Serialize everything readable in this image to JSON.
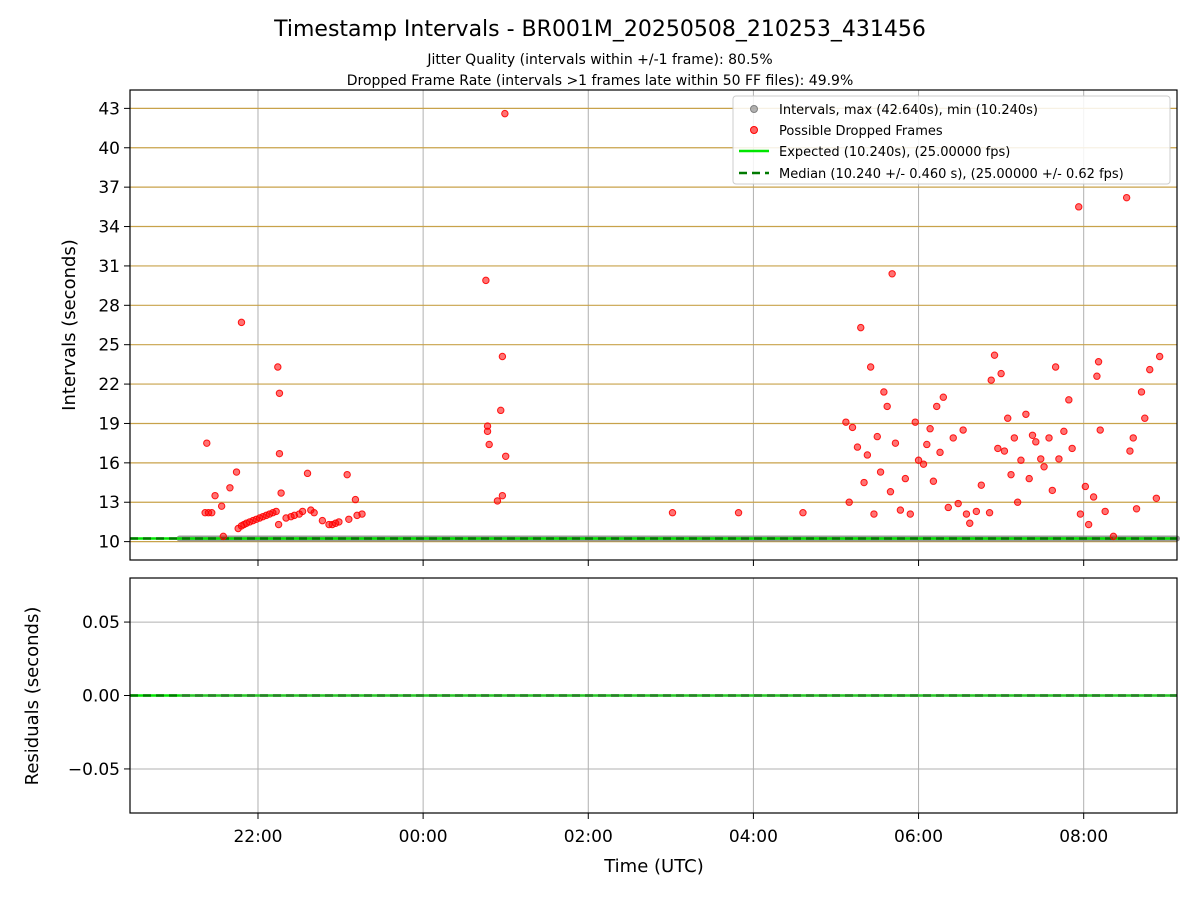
{
  "figure": {
    "title": "Timestamp Intervals - BR001M_20250508_210253_431456",
    "subtitle1": "Jitter Quality (intervals within +/-1 frame): 80.5%",
    "subtitle2": "Dropped Frame Rate (intervals >1 frames late within 50 FF files): 49.9%"
  },
  "chart_data": [
    {
      "type": "scatter",
      "panel": "top",
      "ylabel": "Intervals (seconds)",
      "xlabel": "",
      "x_unit": "hours since 00:00 UTC on 2025-05-09 (negative = 2025-05-08)",
      "xlim": [
        -3.55,
        9.13
      ],
      "ylim": [
        8.6,
        44.4
      ],
      "yticks": [
        10,
        13,
        16,
        19,
        22,
        25,
        28,
        31,
        34,
        37,
        40,
        43
      ],
      "xticks": [
        -2,
        0,
        2,
        4,
        6,
        8
      ],
      "xtick_labels": [
        "22:00",
        "00:00",
        "02:00",
        "04:00",
        "06:00",
        "08:00"
      ],
      "grid": true,
      "legend_position": "top-right",
      "legend": [
        "Intervals, max (42.640s), min (10.240s)",
        "Possible Dropped Frames",
        "Expected (10.240s), (25.00000 fps)",
        "Median (10.240 +/- 0.460 s), (25.00000 +/- 0.62 fps)"
      ],
      "colors": {
        "intervals": "#808080",
        "dropped": "#ff0000",
        "expected": "#00e600",
        "median": "#007a00",
        "hgrid": "#c8a24a",
        "vgrid": "#b0b0b0"
      },
      "normal_interval": {
        "value": 10.24,
        "x_range": [
          -2.95,
          9.13
        ]
      },
      "expected": 10.24,
      "median": 10.24,
      "dropped_frames": [
        [
          -2.62,
          17.5
        ],
        [
          -2.64,
          12.2
        ],
        [
          -2.6,
          12.2
        ],
        [
          -2.56,
          12.2
        ],
        [
          -2.52,
          13.5
        ],
        [
          -2.44,
          12.7
        ],
        [
          -2.42,
          10.4
        ],
        [
          -2.34,
          14.1
        ],
        [
          -2.26,
          15.3
        ],
        [
          -2.24,
          11.0
        ],
        [
          -2.2,
          26.7
        ],
        [
          -2.2,
          11.2
        ],
        [
          -2.17,
          11.3
        ],
        [
          -2.14,
          11.4
        ],
        [
          -2.1,
          11.5
        ],
        [
          -2.06,
          11.6
        ],
        [
          -2.02,
          11.7
        ],
        [
          -1.98,
          11.8
        ],
        [
          -1.94,
          11.9
        ],
        [
          -1.9,
          12.0
        ],
        [
          -1.86,
          12.1
        ],
        [
          -1.82,
          12.2
        ],
        [
          -1.78,
          12.3
        ],
        [
          -1.76,
          23.3
        ],
        [
          -1.74,
          16.7
        ],
        [
          -1.74,
          21.3
        ],
        [
          -1.72,
          13.7
        ],
        [
          -1.75,
          11.3
        ],
        [
          -1.66,
          11.8
        ],
        [
          -1.6,
          11.9
        ],
        [
          -1.56,
          12.0
        ],
        [
          -1.5,
          12.1
        ],
        [
          -1.46,
          12.3
        ],
        [
          -1.4,
          15.2
        ],
        [
          -1.36,
          12.4
        ],
        [
          -1.32,
          12.2
        ],
        [
          -1.22,
          11.6
        ],
        [
          -1.14,
          11.3
        ],
        [
          -1.1,
          11.3
        ],
        [
          -1.06,
          11.4
        ],
        [
          -1.02,
          11.5
        ],
        [
          -0.92,
          15.1
        ],
        [
          -0.9,
          11.7
        ],
        [
          -0.82,
          13.2
        ],
        [
          -0.8,
          12.0
        ],
        [
          -0.74,
          12.1
        ],
        [
          0.76,
          29.9
        ],
        [
          0.78,
          18.8
        ],
        [
          0.78,
          18.4
        ],
        [
          0.8,
          17.4
        ],
        [
          0.9,
          13.1
        ],
        [
          0.94,
          20.0
        ],
        [
          0.96,
          24.1
        ],
        [
          0.96,
          13.5
        ],
        [
          0.99,
          42.6
        ],
        [
          1.0,
          16.5
        ],
        [
          3.02,
          12.2
        ],
        [
          3.82,
          12.2
        ],
        [
          4.6,
          12.2
        ],
        [
          5.12,
          19.1
        ],
        [
          5.16,
          13.0
        ],
        [
          5.2,
          18.7
        ],
        [
          5.26,
          17.2
        ],
        [
          5.3,
          26.3
        ],
        [
          5.34,
          14.5
        ],
        [
          5.38,
          16.6
        ],
        [
          5.42,
          23.3
        ],
        [
          5.46,
          12.1
        ],
        [
          5.5,
          18.0
        ],
        [
          5.54,
          15.3
        ],
        [
          5.58,
          21.4
        ],
        [
          5.62,
          20.3
        ],
        [
          5.66,
          13.8
        ],
        [
          5.68,
          30.4
        ],
        [
          5.72,
          17.5
        ],
        [
          5.78,
          12.4
        ],
        [
          5.84,
          14.8
        ],
        [
          5.9,
          12.1
        ],
        [
          5.96,
          19.1
        ],
        [
          6.0,
          16.2
        ],
        [
          6.06,
          15.9
        ],
        [
          6.1,
          17.4
        ],
        [
          6.14,
          18.6
        ],
        [
          6.18,
          14.6
        ],
        [
          6.22,
          20.3
        ],
        [
          6.26,
          16.8
        ],
        [
          6.3,
          21.0
        ],
        [
          6.36,
          12.6
        ],
        [
          6.42,
          17.9
        ],
        [
          6.48,
          12.9
        ],
        [
          6.54,
          18.5
        ],
        [
          6.58,
          12.1
        ],
        [
          6.62,
          11.4
        ],
        [
          6.7,
          12.3
        ],
        [
          6.76,
          14.3
        ],
        [
          6.86,
          12.2
        ],
        [
          6.88,
          22.3
        ],
        [
          6.92,
          24.2
        ],
        [
          6.96,
          17.1
        ],
        [
          7.0,
          22.8
        ],
        [
          7.04,
          16.9
        ],
        [
          7.08,
          19.4
        ],
        [
          7.12,
          15.1
        ],
        [
          7.16,
          17.9
        ],
        [
          7.2,
          13.0
        ],
        [
          7.24,
          16.2
        ],
        [
          7.3,
          19.7
        ],
        [
          7.34,
          14.8
        ],
        [
          7.38,
          18.1
        ],
        [
          7.42,
          17.6
        ],
        [
          7.48,
          16.3
        ],
        [
          7.52,
          15.7
        ],
        [
          7.58,
          17.9
        ],
        [
          7.62,
          13.9
        ],
        [
          7.66,
          23.3
        ],
        [
          7.7,
          16.3
        ],
        [
          7.76,
          18.4
        ],
        [
          7.82,
          20.8
        ],
        [
          7.86,
          17.1
        ],
        [
          7.94,
          35.5
        ],
        [
          7.96,
          12.1
        ],
        [
          8.02,
          14.2
        ],
        [
          8.06,
          11.3
        ],
        [
          8.12,
          13.4
        ],
        [
          8.16,
          22.6
        ],
        [
          8.18,
          23.7
        ],
        [
          8.2,
          18.5
        ],
        [
          8.26,
          12.3
        ],
        [
          8.36,
          10.4
        ],
        [
          8.52,
          36.2
        ],
        [
          8.56,
          16.9
        ],
        [
          8.6,
          17.9
        ],
        [
          8.64,
          12.5
        ],
        [
          8.7,
          21.4
        ],
        [
          8.74,
          19.4
        ],
        [
          8.8,
          23.1
        ],
        [
          8.88,
          13.3
        ],
        [
          8.92,
          24.1
        ]
      ]
    },
    {
      "type": "scatter",
      "panel": "bottom",
      "ylabel": "Residuals (seconds)",
      "xlabel": "Time (UTC)",
      "xlim": [
        -3.55,
        9.13
      ],
      "ylim": [
        -0.08,
        0.08
      ],
      "yticks": [
        0.05,
        0.0,
        -0.05
      ],
      "ytick_labels": [
        "0.05",
        "0.00",
        "−0.05"
      ],
      "xticks": [
        -2,
        0,
        2,
        4,
        6,
        8
      ],
      "xtick_labels": [
        "22:00",
        "00:00",
        "02:00",
        "04:00",
        "06:00",
        "08:00"
      ],
      "grid": true,
      "residual_value": 0.0
    }
  ]
}
